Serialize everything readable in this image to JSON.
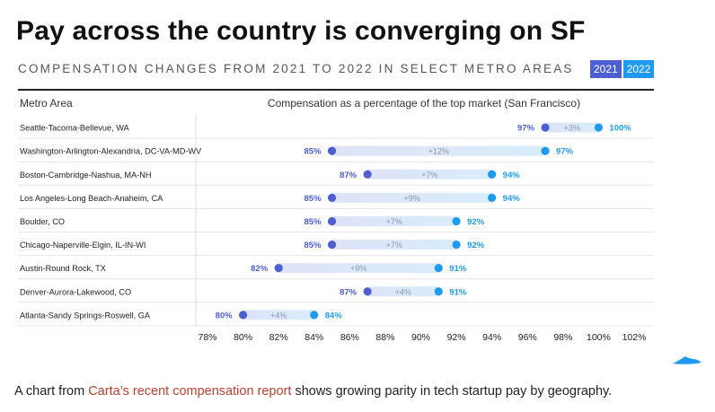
{
  "title": "Pay across the country is converging on SF",
  "subtitle": "COMPENSATION CHANGES FROM 2021 TO 2022 IN SELECT METRO AREAS",
  "legend": [
    {
      "label": "2021",
      "color": "#4d5fd1"
    },
    {
      "label": "2022",
      "color": "#1e9bf0"
    }
  ],
  "caption": {
    "before": "A chart from ",
    "link": "Carta’s recent compensation report",
    "after": " shows growing parity in tech startup pay by geography."
  },
  "chart_data": {
    "type": "dumbbell",
    "metro_header": "Metro Area",
    "xlabel": "Compensation as a percentage of the top market (San Francisco)",
    "xlim": [
      78,
      102
    ],
    "ticks": [
      78,
      80,
      82,
      84,
      86,
      88,
      90,
      92,
      94,
      96,
      98,
      100,
      102
    ],
    "tick_suffix": "%",
    "series": [
      {
        "name": "2021",
        "color": "#4d5fd1"
      },
      {
        "name": "2022",
        "color": "#1e9bf0"
      }
    ],
    "rows": [
      {
        "metro": "Seattle-Tacoma-Bellevue, WA",
        "v2021": 97,
        "v2022": 100,
        "change": "+3%"
      },
      {
        "metro": "Washington-Arlington-Alexandria, DC-VA-MD-WV",
        "v2021": 85,
        "v2022": 97,
        "change": "+12%"
      },
      {
        "metro": "Boston-Cambridge-Nashua, MA-NH",
        "v2021": 87,
        "v2022": 94,
        "change": "+7%"
      },
      {
        "metro": "Los Angeles-Long Beach-Anaheim, CA",
        "v2021": 85,
        "v2022": 94,
        "change": "+9%"
      },
      {
        "metro": "Boulder, CO",
        "v2021": 85,
        "v2022": 92,
        "change": "+7%"
      },
      {
        "metro": "Chicago-Naperville-Elgin, IL-IN-WI",
        "v2021": 85,
        "v2022": 92,
        "change": "+7%"
      },
      {
        "metro": "Austin-Round Rock, TX",
        "v2021": 82,
        "v2022": 91,
        "change": "+9%"
      },
      {
        "metro": "Denver-Aurora-Lakewood, CO",
        "v2021": 87,
        "v2022": 91,
        "change": "+4%"
      },
      {
        "metro": "Atlanta-Sandy Springs-Roswell, GA",
        "v2021": 80,
        "v2022": 84,
        "change": "+4%"
      }
    ]
  }
}
